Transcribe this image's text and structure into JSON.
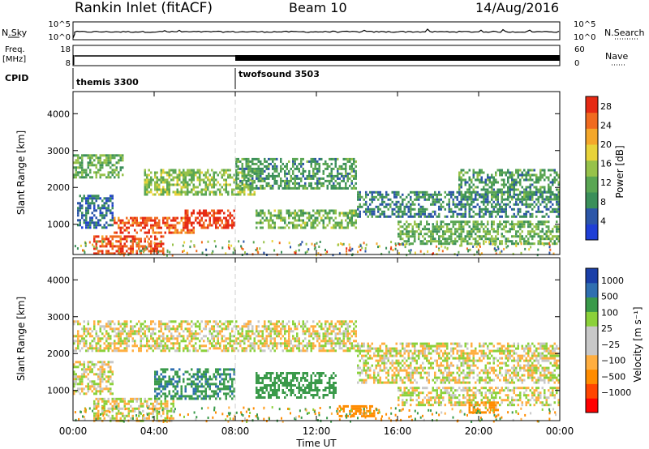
{
  "header": {
    "station": "Rankin Inlet (fitACF)",
    "beam": "Beam 10",
    "date": "14/Aug/2016"
  },
  "strip": {
    "nsky_label": "N.Sky",
    "nsky_ticks": [
      "10^5",
      "10^0"
    ],
    "nsearch_label": "N.Search",
    "nsearch_ticks": [
      "10^5",
      "10^0"
    ],
    "freq_label_1": "Freq.",
    "freq_label_2": "[MHz]",
    "freq_ticks": [
      "18",
      "8"
    ],
    "nave_label": "Nave",
    "nave_ticks": [
      "60",
      "0"
    ],
    "cpid_label": "CPID",
    "modes": [
      {
        "name": "themis 3300",
        "start_hour": 0
      },
      {
        "name": "twofsound 3503",
        "start_hour": 8
      }
    ]
  },
  "colors": {
    "power_scale": [
      "#1f3fd6",
      "#2c56a8",
      "#3b8f5a",
      "#5aa653",
      "#97c24a",
      "#e8d33a",
      "#f4a72a",
      "#f06a1f",
      "#e62a14"
    ],
    "velocity_scale": [
      "#ff0000",
      "#ff4500",
      "#ff8c00",
      "#ffae40",
      "#c8c8c8",
      "#c8c8c8",
      "#8bd13a",
      "#3a9a4a",
      "#2f6fb0",
      "#1a3fa8"
    ]
  },
  "chart_data": [
    {
      "type": "heatmap",
      "panel": "power",
      "xlabel": "",
      "ylabel": "Slant Range [km]",
      "xlim": [
        0,
        24
      ],
      "ylim": [
        180,
        4600
      ],
      "yticks": [
        1000,
        2000,
        3000,
        4000
      ],
      "colorbar_label": "Power [dB]",
      "colorbar_ticks": [
        4,
        8,
        12,
        16,
        20,
        24,
        28
      ],
      "colorbar_range": [
        0,
        30
      ],
      "regions": [
        {
          "t0": 0.0,
          "t1": 2.5,
          "r0": 2300,
          "r1": 2900,
          "value": 12
        },
        {
          "t0": 0.2,
          "t1": 2.0,
          "r0": 900,
          "r1": 1800,
          "value": 6
        },
        {
          "t0": 1.0,
          "t1": 4.5,
          "r0": 200,
          "r1": 700,
          "value": 27
        },
        {
          "t0": 2.0,
          "t1": 6.0,
          "r0": 800,
          "r1": 1200,
          "value": 26
        },
        {
          "t0": 5.5,
          "t1": 8.0,
          "r0": 900,
          "r1": 1400,
          "value": 28
        },
        {
          "t0": 3.5,
          "t1": 9.0,
          "r0": 1800,
          "r1": 2500,
          "value": 14
        },
        {
          "t0": 8.0,
          "t1": 14.0,
          "r0": 2000,
          "r1": 2800,
          "value": 10
        },
        {
          "t0": 9.0,
          "t1": 14.0,
          "r0": 900,
          "r1": 1400,
          "value": 13
        },
        {
          "t0": 14.0,
          "t1": 24.0,
          "r0": 1200,
          "r1": 1900,
          "value": 8
        },
        {
          "t0": 16.0,
          "t1": 24.0,
          "r0": 500,
          "r1": 1100,
          "value": 12
        },
        {
          "t0": 19.0,
          "t1": 24.0,
          "r0": 1700,
          "r1": 2500,
          "value": 10
        }
      ]
    },
    {
      "type": "heatmap",
      "panel": "velocity",
      "xlabel": "Time UT",
      "ylabel": "Slant Range [km]",
      "xlim": [
        0,
        24
      ],
      "ylim": [
        180,
        4600
      ],
      "xticks": [
        "00:00",
        "04:00",
        "08:00",
        "12:00",
        "16:00",
        "20:00",
        "00:00"
      ],
      "yticks": [
        1000,
        2000,
        3000,
        4000
      ],
      "colorbar_label": "Velocity [m s⁻¹]",
      "colorbar_ticks": [
        "1000",
        "500",
        "100",
        "25",
        "−25",
        "−100",
        "−500",
        "−1000"
      ],
      "regions": [
        {
          "t0": 0.0,
          "t1": 14.0,
          "r0": 2100,
          "r1": 2900,
          "value": 0
        },
        {
          "t0": 0.0,
          "t1": 2.0,
          "r0": 900,
          "r1": 1800,
          "value": 0
        },
        {
          "t0": 1.0,
          "t1": 5.0,
          "r0": 200,
          "r1": 800,
          "value": 0
        },
        {
          "t0": 4.0,
          "t1": 8.0,
          "r0": 800,
          "r1": 1600,
          "value": 450
        },
        {
          "t0": 9.0,
          "t1": 13.0,
          "r0": 800,
          "r1": 1500,
          "value": 300
        },
        {
          "t0": 14.0,
          "t1": 24.0,
          "r0": 1200,
          "r1": 2300,
          "value": 0
        },
        {
          "t0": 16.0,
          "t1": 24.0,
          "r0": 600,
          "r1": 1100,
          "value": 0
        },
        {
          "t0": 13.0,
          "t1": 15.0,
          "r0": 300,
          "r1": 600,
          "value": -250
        },
        {
          "t0": 19.5,
          "t1": 21.0,
          "r0": 400,
          "r1": 700,
          "value": -250
        }
      ]
    }
  ]
}
